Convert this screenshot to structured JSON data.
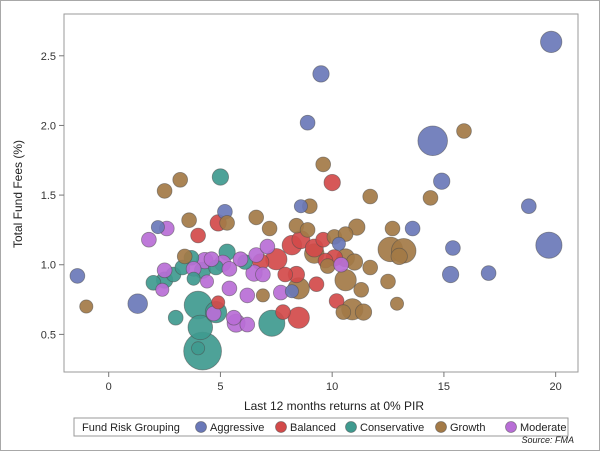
{
  "chart_data": {
    "type": "scatter",
    "title": "",
    "xlabel": "Last 12 months returns at 0% PIR",
    "ylabel": "Total Fund Fees (%)",
    "xlim": [
      -2,
      21
    ],
    "ylim": [
      0.23,
      2.8
    ],
    "xticks": [
      "0",
      "5",
      "10",
      "15",
      "20"
    ],
    "yticks": [
      "0.5",
      "1.0",
      "1.5",
      "2.0",
      "2.5"
    ],
    "legend": {
      "title": "Fund Risk Grouping",
      "position": "bottom",
      "entries": [
        "Aggressive",
        "Balanced",
        "Conservative",
        "Growth",
        "Moderate"
      ]
    },
    "source": "Source: FMA",
    "colors": {
      "Aggressive": "#6a78b8",
      "Balanced": "#d24a4a",
      "Conservative": "#3f9a8f",
      "Growth": "#a37a47",
      "Moderate": "#b86ed6"
    },
    "series": [
      {
        "name": "Aggressive",
        "points": [
          {
            "x": 19.8,
            "y": 2.6,
            "s": 1.3
          },
          {
            "x": 9.5,
            "y": 2.37,
            "s": 1.0
          },
          {
            "x": 8.9,
            "y": 2.02,
            "s": 0.9
          },
          {
            "x": 14.5,
            "y": 1.89,
            "s": 1.8
          },
          {
            "x": 14.9,
            "y": 1.6,
            "s": 1.0
          },
          {
            "x": 18.8,
            "y": 1.42,
            "s": 0.9
          },
          {
            "x": 19.7,
            "y": 1.14,
            "s": 1.6
          },
          {
            "x": 15.4,
            "y": 1.12,
            "s": 0.9
          },
          {
            "x": 15.3,
            "y": 0.93,
            "s": 1.0
          },
          {
            "x": 17.0,
            "y": 0.94,
            "s": 0.9
          },
          {
            "x": -1.4,
            "y": 0.92,
            "s": 0.9
          },
          {
            "x": 1.3,
            "y": 0.72,
            "s": 1.2
          },
          {
            "x": 5.2,
            "y": 1.38,
            "s": 0.9
          },
          {
            "x": 13.6,
            "y": 1.26,
            "s": 0.9
          },
          {
            "x": 8.6,
            "y": 1.42,
            "s": 0.8
          },
          {
            "x": 10.3,
            "y": 1.15,
            "s": 0.8
          },
          {
            "x": 8.2,
            "y": 0.81,
            "s": 0.8
          },
          {
            "x": 2.2,
            "y": 1.27,
            "s": 0.8
          }
        ]
      },
      {
        "name": "Balanced",
        "points": [
          {
            "x": 10.0,
            "y": 1.59,
            "s": 1.0
          },
          {
            "x": 4.9,
            "y": 1.3,
            "s": 1.0
          },
          {
            "x": 4.0,
            "y": 1.21,
            "s": 0.9
          },
          {
            "x": 8.2,
            "y": 1.14,
            "s": 1.2
          },
          {
            "x": 8.6,
            "y": 1.18,
            "s": 1.1
          },
          {
            "x": 9.2,
            "y": 1.12,
            "s": 1.1
          },
          {
            "x": 9.6,
            "y": 1.18,
            "s": 0.9
          },
          {
            "x": 7.5,
            "y": 1.04,
            "s": 1.3
          },
          {
            "x": 6.8,
            "y": 1.02,
            "s": 1.0
          },
          {
            "x": 7.9,
            "y": 0.93,
            "s": 0.9
          },
          {
            "x": 8.4,
            "y": 0.93,
            "s": 1.0
          },
          {
            "x": 9.7,
            "y": 1.03,
            "s": 0.9
          },
          {
            "x": 10.1,
            "y": 1.05,
            "s": 1.0
          },
          {
            "x": 10.2,
            "y": 0.74,
            "s": 0.9
          },
          {
            "x": 7.8,
            "y": 0.66,
            "s": 0.9
          },
          {
            "x": 8.5,
            "y": 0.62,
            "s": 1.3
          },
          {
            "x": 4.9,
            "y": 0.73,
            "s": 0.8
          },
          {
            "x": 9.3,
            "y": 0.86,
            "s": 0.9
          }
        ]
      },
      {
        "name": "Conservative",
        "points": [
          {
            "x": 5.0,
            "y": 1.63,
            "s": 1.0
          },
          {
            "x": 5.3,
            "y": 1.09,
            "s": 1.0
          },
          {
            "x": 3.7,
            "y": 1.05,
            "s": 0.9
          },
          {
            "x": 6.1,
            "y": 1.02,
            "s": 0.9
          },
          {
            "x": 2.5,
            "y": 0.89,
            "s": 1.0
          },
          {
            "x": 2.0,
            "y": 0.87,
            "s": 0.9
          },
          {
            "x": 2.9,
            "y": 0.93,
            "s": 0.9
          },
          {
            "x": 3.3,
            "y": 0.98,
            "s": 0.9
          },
          {
            "x": 4.2,
            "y": 0.96,
            "s": 1.0
          },
          {
            "x": 4.8,
            "y": 0.98,
            "s": 0.9
          },
          {
            "x": 4.0,
            "y": 0.71,
            "s": 1.7
          },
          {
            "x": 4.8,
            "y": 0.66,
            "s": 1.3
          },
          {
            "x": 4.1,
            "y": 0.55,
            "s": 1.5
          },
          {
            "x": 4.2,
            "y": 0.38,
            "s": 2.3
          },
          {
            "x": 7.3,
            "y": 0.58,
            "s": 1.6
          },
          {
            "x": 3.0,
            "y": 0.62,
            "s": 0.9
          },
          {
            "x": 4.0,
            "y": 0.4,
            "s": 0.8
          },
          {
            "x": 3.8,
            "y": 0.9,
            "s": 0.8
          }
        ]
      },
      {
        "name": "Growth",
        "points": [
          {
            "x": 15.9,
            "y": 1.96,
            "s": 0.9
          },
          {
            "x": 9.6,
            "y": 1.72,
            "s": 0.9
          },
          {
            "x": 11.7,
            "y": 1.49,
            "s": 0.9
          },
          {
            "x": 14.4,
            "y": 1.48,
            "s": 0.9
          },
          {
            "x": 3.2,
            "y": 1.61,
            "s": 0.9
          },
          {
            "x": 2.5,
            "y": 1.53,
            "s": 0.9
          },
          {
            "x": 3.6,
            "y": 1.32,
            "s": 0.9
          },
          {
            "x": 5.3,
            "y": 1.3,
            "s": 0.9
          },
          {
            "x": 6.6,
            "y": 1.34,
            "s": 0.9
          },
          {
            "x": 7.2,
            "y": 1.26,
            "s": 0.9
          },
          {
            "x": 8.4,
            "y": 1.28,
            "s": 0.9
          },
          {
            "x": 9.0,
            "y": 1.42,
            "s": 0.9
          },
          {
            "x": 8.9,
            "y": 1.25,
            "s": 0.9
          },
          {
            "x": 10.1,
            "y": 1.2,
            "s": 0.9
          },
          {
            "x": 10.6,
            "y": 1.22,
            "s": 0.9
          },
          {
            "x": 11.1,
            "y": 1.27,
            "s": 1.0
          },
          {
            "x": 12.7,
            "y": 1.26,
            "s": 0.9
          },
          {
            "x": 12.6,
            "y": 1.11,
            "s": 1.5
          },
          {
            "x": 13.2,
            "y": 1.1,
            "s": 1.5
          },
          {
            "x": 13.0,
            "y": 1.06,
            "s": 1.0
          },
          {
            "x": 9.2,
            "y": 1.08,
            "s": 1.2
          },
          {
            "x": 10.6,
            "y": 1.05,
            "s": 1.1
          },
          {
            "x": 11.0,
            "y": 1.02,
            "s": 1.0
          },
          {
            "x": 11.7,
            "y": 0.98,
            "s": 0.9
          },
          {
            "x": 10.6,
            "y": 0.89,
            "s": 1.3
          },
          {
            "x": 12.5,
            "y": 0.88,
            "s": 0.9
          },
          {
            "x": 11.3,
            "y": 0.82,
            "s": 0.9
          },
          {
            "x": 8.5,
            "y": 0.83,
            "s": 1.3
          },
          {
            "x": 10.9,
            "y": 0.68,
            "s": 1.3
          },
          {
            "x": 10.5,
            "y": 0.66,
            "s": 0.9
          },
          {
            "x": 11.4,
            "y": 0.66,
            "s": 1.0
          },
          {
            "x": 12.9,
            "y": 0.72,
            "s": 0.8
          },
          {
            "x": 6.9,
            "y": 0.78,
            "s": 0.8
          },
          {
            "x": 3.4,
            "y": 1.06,
            "s": 0.9
          },
          {
            "x": 9.8,
            "y": 0.99,
            "s": 0.9
          },
          {
            "x": -1.0,
            "y": 0.7,
            "s": 0.8
          }
        ]
      },
      {
        "name": "Moderate",
        "points": [
          {
            "x": 1.8,
            "y": 1.18,
            "s": 0.9
          },
          {
            "x": 2.6,
            "y": 1.26,
            "s": 0.9
          },
          {
            "x": 4.3,
            "y": 1.03,
            "s": 1.0
          },
          {
            "x": 4.6,
            "y": 1.04,
            "s": 0.9
          },
          {
            "x": 5.1,
            "y": 1.01,
            "s": 1.0
          },
          {
            "x": 5.9,
            "y": 1.04,
            "s": 0.9
          },
          {
            "x": 6.6,
            "y": 1.07,
            "s": 0.9
          },
          {
            "x": 7.1,
            "y": 1.13,
            "s": 0.9
          },
          {
            "x": 2.5,
            "y": 0.96,
            "s": 0.9
          },
          {
            "x": 3.8,
            "y": 0.97,
            "s": 0.9
          },
          {
            "x": 5.4,
            "y": 0.97,
            "s": 0.9
          },
          {
            "x": 6.5,
            "y": 0.94,
            "s": 1.0
          },
          {
            "x": 6.9,
            "y": 0.93,
            "s": 0.9
          },
          {
            "x": 10.4,
            "y": 1.0,
            "s": 0.9
          },
          {
            "x": 5.4,
            "y": 0.83,
            "s": 0.9
          },
          {
            "x": 6.2,
            "y": 0.78,
            "s": 0.9
          },
          {
            "x": 7.7,
            "y": 0.8,
            "s": 0.9
          },
          {
            "x": 2.4,
            "y": 0.82,
            "s": 0.8
          },
          {
            "x": 4.7,
            "y": 0.65,
            "s": 0.9
          },
          {
            "x": 5.7,
            "y": 0.58,
            "s": 1.1
          },
          {
            "x": 6.2,
            "y": 0.57,
            "s": 0.9
          },
          {
            "x": 5.6,
            "y": 0.62,
            "s": 0.9
          },
          {
            "x": 4.4,
            "y": 0.88,
            "s": 0.8
          }
        ]
      }
    ]
  }
}
